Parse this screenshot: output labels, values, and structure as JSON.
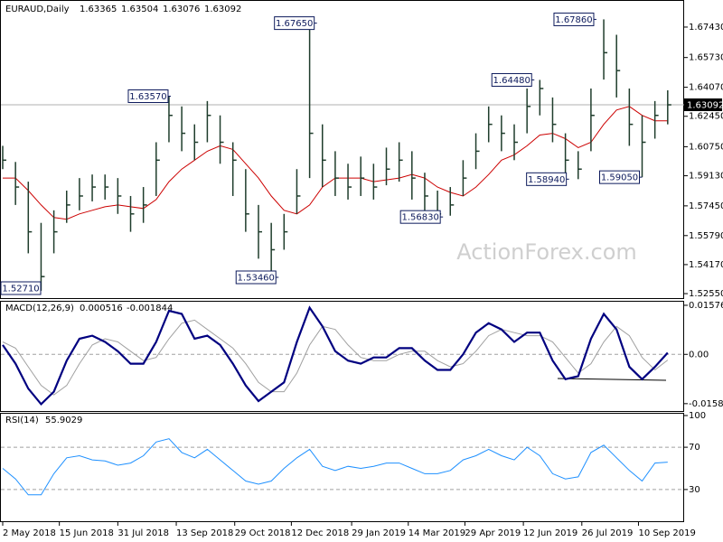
{
  "chart_data": [
    {
      "type": "ohlc",
      "title": "EURAUD,Daily",
      "open": 1.63365,
      "high": 1.63504,
      "low": 1.63076,
      "close": 1.63092,
      "watermark": "ActionForex.com",
      "x": [
        0,
        7,
        14,
        21,
        28,
        35,
        42,
        49,
        56,
        63,
        70,
        77,
        84,
        91,
        98,
        105,
        112,
        119,
        126,
        133,
        140,
        147,
        154,
        161,
        168,
        175,
        182,
        189,
        196,
        203,
        210,
        217,
        224,
        231,
        238,
        245,
        252,
        259,
        266,
        273,
        280,
        287,
        294,
        301,
        308,
        315,
        322,
        329,
        336,
        343,
        350,
        357,
        364
      ],
      "xlim": [
        0,
        373
      ],
      "xticks": [
        {
          "value": 0,
          "label": "2 May 2018"
        },
        {
          "value": 31,
          "label": "15 Jun 2018"
        },
        {
          "value": 63,
          "label": "31 Jul 2018"
        },
        {
          "value": 95,
          "label": "13 Sep 2018"
        },
        {
          "value": 127,
          "label": "29 Oct 2018"
        },
        {
          "value": 158,
          "label": "12 Dec 2018"
        },
        {
          "value": 191,
          "label": "29 Jan 2019"
        },
        {
          "value": 222,
          "label": "14 Mar 2019"
        },
        {
          "value": 253,
          "label": "29 Apr 2019"
        },
        {
          "value": 285,
          "label": "12 Jun 2019"
        },
        {
          "value": 317,
          "label": "26 Jul 2019"
        },
        {
          "value": 348,
          "label": "10 Sep 2019"
        }
      ],
      "bars": {
        "color": "#1f3d2c",
        "high": [
          1.608,
          1.599,
          1.588,
          1.565,
          1.572,
          1.583,
          1.59,
          1.592,
          1.592,
          1.59,
          1.58,
          1.585,
          1.61,
          1.6357,
          1.63,
          1.62,
          1.633,
          1.625,
          1.61,
          1.595,
          1.575,
          1.565,
          1.57,
          1.595,
          1.6765,
          1.62,
          1.605,
          1.598,
          1.602,
          1.598,
          1.607,
          1.61,
          1.605,
          1.593,
          1.583,
          1.585,
          1.6,
          1.615,
          1.63,
          1.625,
          1.62,
          1.64,
          1.6448,
          1.635,
          1.615,
          1.605,
          1.64,
          1.6786,
          1.67,
          1.64,
          1.625,
          1.633,
          1.639
        ],
        "low": [
          1.595,
          1.575,
          1.548,
          1.5271,
          1.548,
          1.565,
          1.572,
          1.577,
          1.578,
          1.57,
          1.56,
          1.565,
          1.58,
          1.61,
          1.605,
          1.6,
          1.61,
          1.598,
          1.58,
          1.56,
          1.545,
          1.5346,
          1.55,
          1.57,
          1.59,
          1.585,
          1.58,
          1.578,
          1.58,
          1.578,
          1.586,
          1.588,
          1.578,
          1.5683,
          1.5683,
          1.569,
          1.58,
          1.595,
          1.61,
          1.605,
          1.6,
          1.615,
          1.625,
          1.61,
          1.5894,
          1.5894,
          1.605,
          1.645,
          1.635,
          1.608,
          1.5905,
          1.612,
          1.62
        ],
        "close": [
          1.6,
          1.585,
          1.56,
          1.535,
          1.56,
          1.575,
          1.58,
          1.585,
          1.585,
          1.58,
          1.57,
          1.575,
          1.6,
          1.625,
          1.615,
          1.61,
          1.625,
          1.61,
          1.6,
          1.57,
          1.56,
          1.55,
          1.56,
          1.58,
          1.615,
          1.6,
          1.59,
          1.585,
          1.59,
          1.585,
          1.595,
          1.6,
          1.59,
          1.58,
          1.57,
          1.575,
          1.59,
          1.605,
          1.62,
          1.615,
          1.61,
          1.63,
          1.64,
          1.62,
          1.6,
          1.595,
          1.625,
          1.66,
          1.65,
          1.62,
          1.61,
          1.625,
          1.6309
        ]
      },
      "moving_average": {
        "color": "#cc0000",
        "values": [
          1.59,
          1.59,
          1.583,
          1.575,
          1.568,
          1.567,
          1.57,
          1.572,
          1.574,
          1.575,
          1.574,
          1.573,
          1.578,
          1.588,
          1.595,
          1.6,
          1.605,
          1.608,
          1.606,
          1.598,
          1.59,
          1.58,
          1.572,
          1.57,
          1.575,
          1.585,
          1.59,
          1.59,
          1.59,
          1.588,
          1.589,
          1.59,
          1.592,
          1.59,
          1.585,
          1.582,
          1.58,
          1.585,
          1.592,
          1.6,
          1.603,
          1.608,
          1.614,
          1.615,
          1.612,
          1.607,
          1.61,
          1.62,
          1.628,
          1.63,
          1.625,
          1.622,
          1.622
        ]
      },
      "ylim": [
        1.523,
        1.6879
      ],
      "yticks": [
        {
          "value": 1.6743,
          "label": "1.67430"
        },
        {
          "value": 1.6573,
          "label": "1.65730"
        },
        {
          "value": 1.6407,
          "label": "1.64070"
        },
        {
          "value": 1.6245,
          "label": "1.62450"
        },
        {
          "value": 1.6075,
          "label": "1.60750"
        },
        {
          "value": 1.5913,
          "label": "1.59130"
        },
        {
          "value": 1.5745,
          "label": "1.57450"
        },
        {
          "value": 1.5579,
          "label": "1.55790"
        },
        {
          "value": 1.5417,
          "label": "1.54170"
        },
        {
          "value": 1.5255,
          "label": "1.52550"
        }
      ],
      "annotations": [
        {
          "value": 1.5271,
          "label": "1.52710",
          "x": 18
        },
        {
          "value": 1.6357,
          "label": "1.63570",
          "x": 92
        },
        {
          "value": 1.6765,
          "label": "1.67650",
          "x": 172
        },
        {
          "value": 1.5346,
          "label": "1.53460",
          "x": 151
        },
        {
          "value": 1.5683,
          "label": "1.56830",
          "x": 241
        },
        {
          "value": 1.6448,
          "label": "1.64480",
          "x": 291
        },
        {
          "value": 1.5894,
          "label": "1.58940",
          "x": 310
        },
        {
          "value": 1.6786,
          "label": "1.67860",
          "x": 325
        },
        {
          "value": 1.5905,
          "label": "1.59050",
          "x": 350
        }
      ]
    },
    {
      "type": "macd",
      "title": "MACD(12,26,9)",
      "main": 0.000516,
      "signal": -0.001844,
      "series": [
        {
          "color": "#000080",
          "values": [
            0.003,
            -0.003,
            -0.011,
            -0.016,
            -0.012,
            -0.002,
            0.005,
            0.006,
            0.004,
            0.001,
            -0.003,
            -0.003,
            0.004,
            0.014,
            0.013,
            0.005,
            0.006,
            0.003,
            -0.003,
            -0.01,
            -0.015,
            -0.012,
            -0.009,
            0.004,
            0.015,
            0.009,
            0.001,
            -0.002,
            -0.003,
            -0.001,
            -0.001,
            0.002,
            0.002,
            -0.002,
            -0.005,
            -0.005,
            0.0,
            0.007,
            0.01,
            0.008,
            0.004,
            0.007,
            0.007,
            -0.002,
            -0.008,
            -0.007,
            0.005,
            0.013,
            0.008,
            -0.004,
            -0.008,
            -0.004,
            0.000516
          ]
        },
        {
          "color": "#a0a0a0",
          "values": [
            0.004,
            0.002,
            -0.004,
            -0.01,
            -0.013,
            -0.01,
            -0.003,
            0.003,
            0.005,
            0.004,
            0.001,
            -0.002,
            -0.001,
            0.005,
            0.01,
            0.011,
            0.008,
            0.005,
            0.002,
            -0.003,
            -0.009,
            -0.012,
            -0.012,
            -0.006,
            0.003,
            0.009,
            0.008,
            0.003,
            -0.001,
            -0.002,
            -0.002,
            0.0,
            0.001,
            0.001,
            -0.002,
            -0.004,
            -0.003,
            0.001,
            0.006,
            0.008,
            0.007,
            0.006,
            0.006,
            0.004,
            -0.001,
            -0.006,
            -0.003,
            0.004,
            0.009,
            0.006,
            -0.001,
            -0.005,
            -0.001844
          ]
        }
      ],
      "ylim": [
        -0.0182,
        0.0172
      ],
      "yticks": [
        0.015762,
        {
          "value": 0,
          "label": "0.00"
        },
        -0.015834
      ],
      "levels": [
        0
      ]
    },
    {
      "type": "rsi",
      "title": "RSI(14)",
      "last": 55.9029,
      "series": [
        {
          "color": "#1e90ff",
          "values": [
            50,
            40,
            25,
            25,
            45,
            60,
            62,
            58,
            57,
            53,
            55,
            62,
            75,
            78,
            65,
            60,
            68,
            58,
            48,
            38,
            35,
            38,
            50,
            60,
            68,
            52,
            48,
            52,
            50,
            52,
            55,
            55,
            50,
            45,
            45,
            48,
            58,
            62,
            68,
            62,
            58,
            70,
            62,
            45,
            40,
            42,
            65,
            72,
            60,
            48,
            38,
            55,
            55.9029
          ]
        }
      ],
      "ylim": [
        0,
        100
      ],
      "yticks": [
        100,
        70,
        30
      ],
      "levels": [
        70,
        30
      ]
    }
  ]
}
